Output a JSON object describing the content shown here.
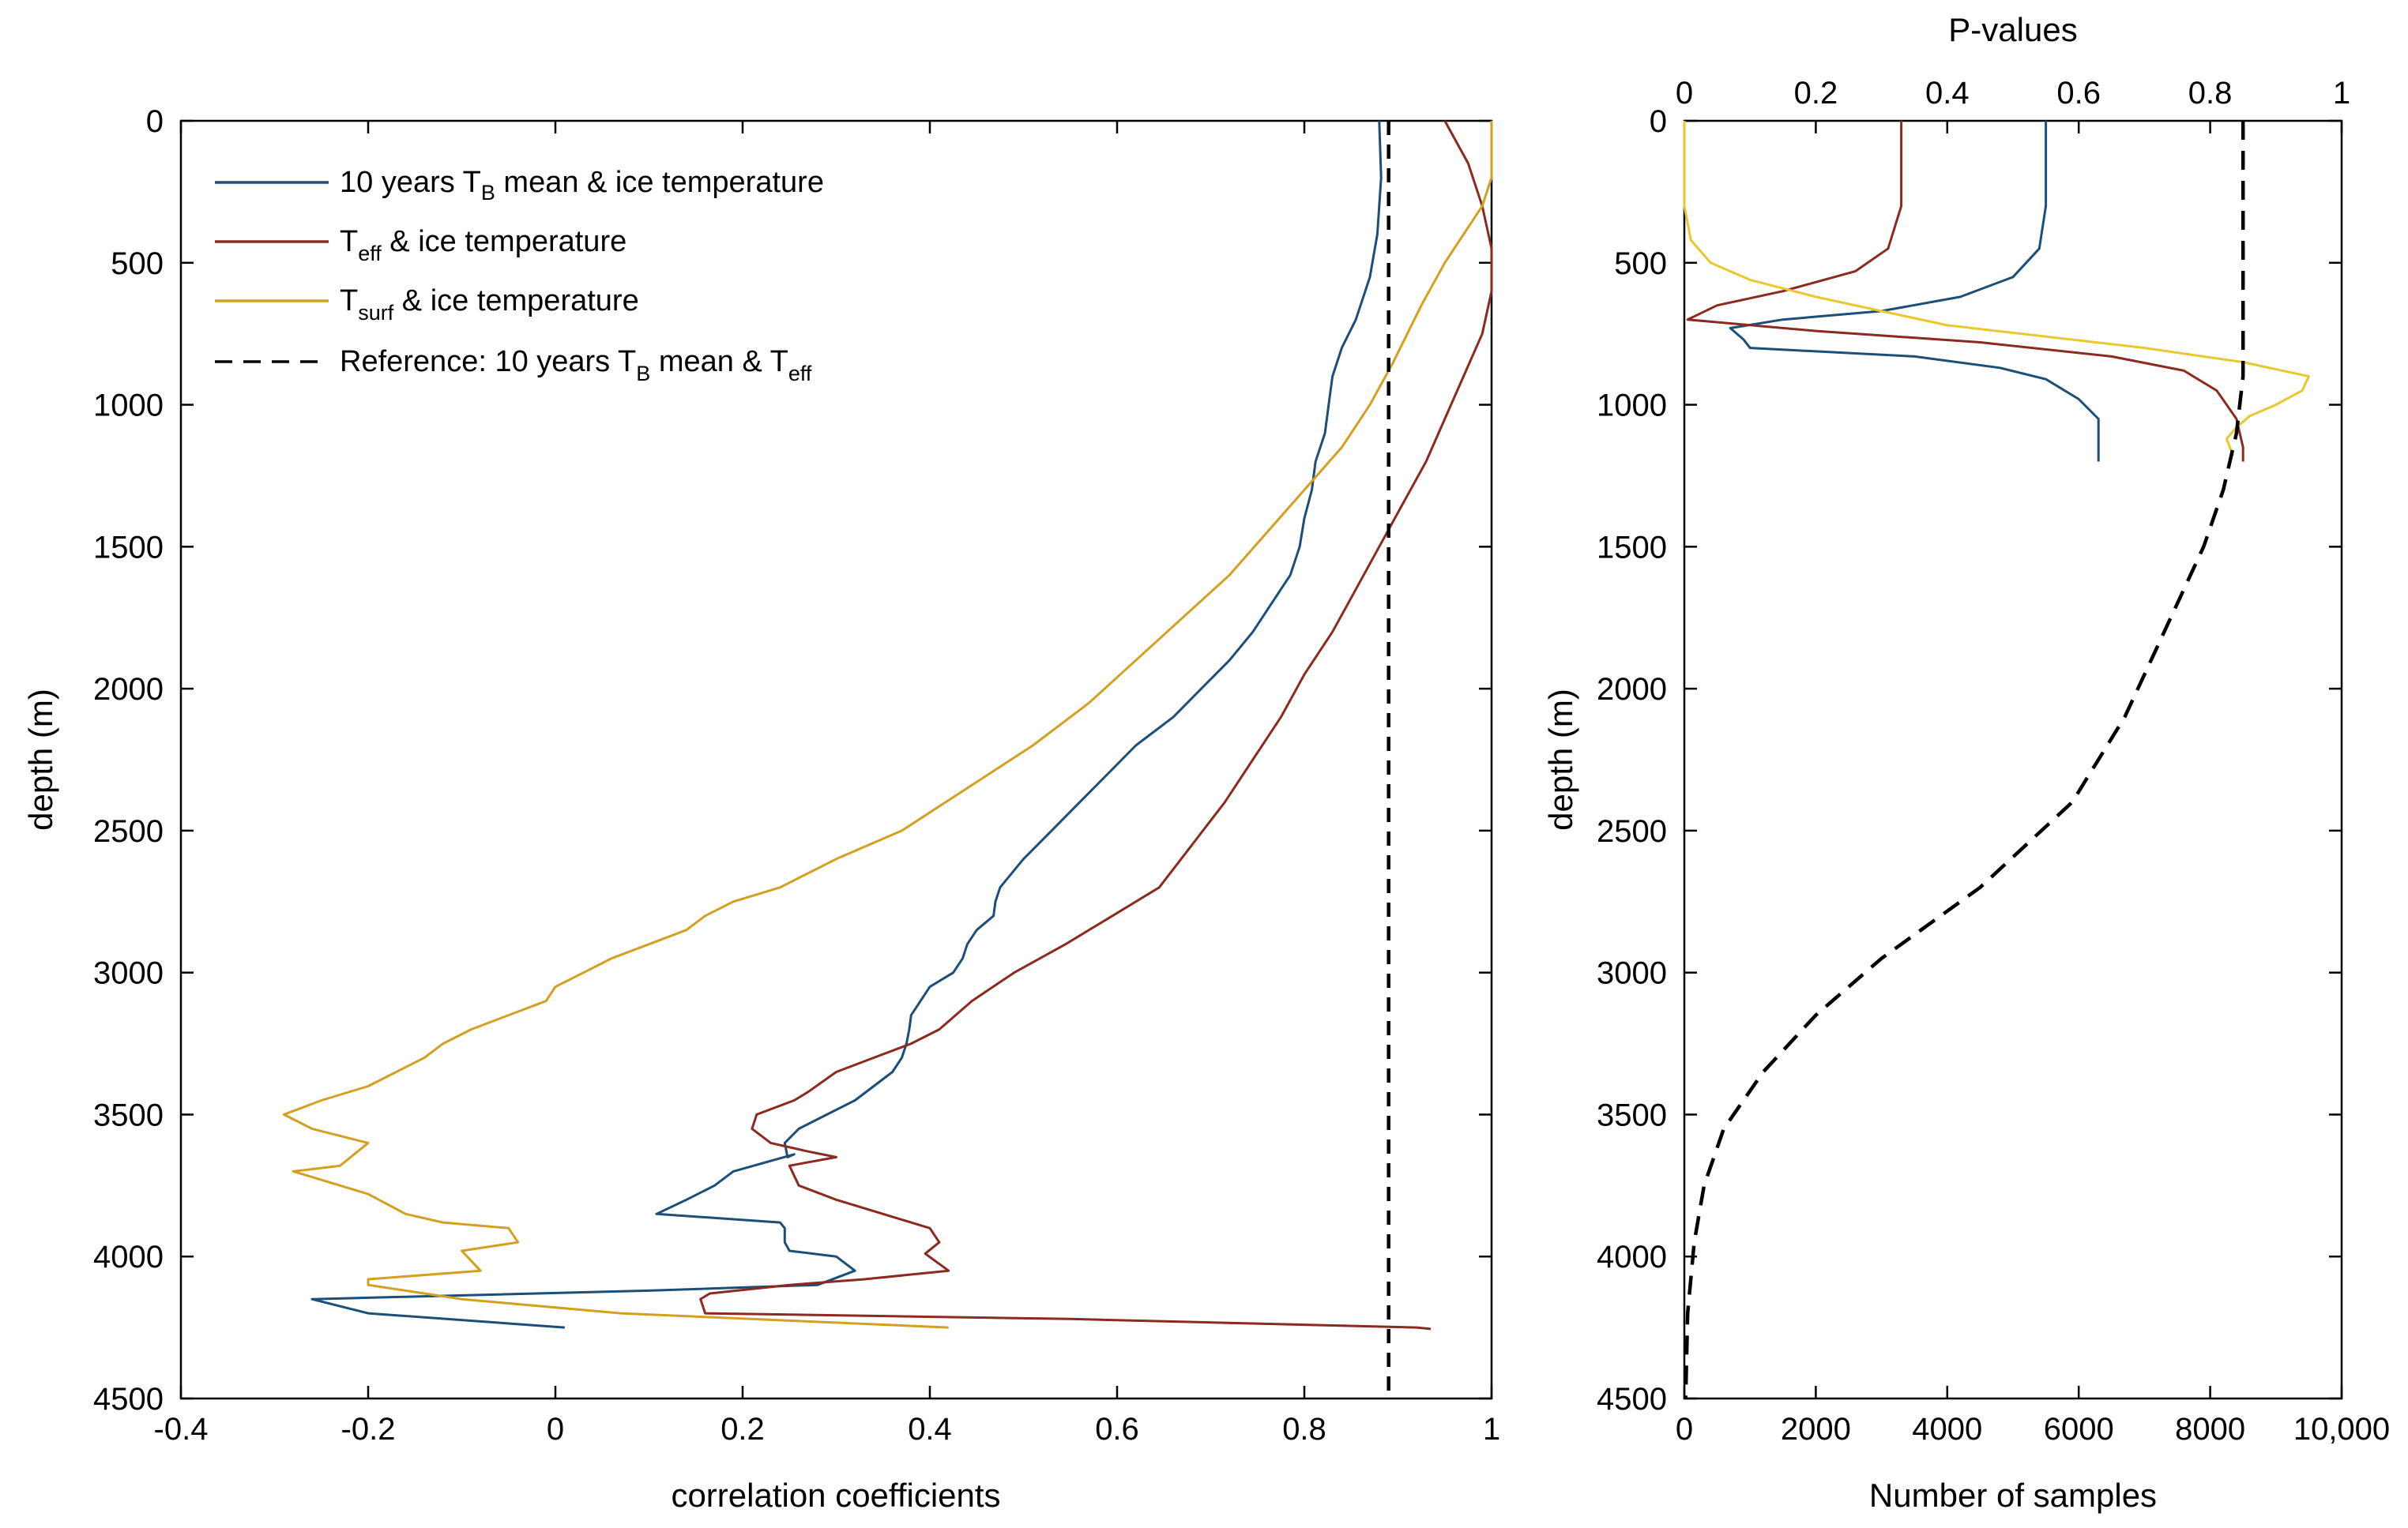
{
  "colors": {
    "blue": "#1b4f7a",
    "red": "#8b2a1e",
    "gold": "#d4a020",
    "yellow": "#e8c82e",
    "black": "#000000"
  },
  "chart_data": [
    {
      "type": "line",
      "xlabel": "correlation coefficients",
      "ylabel": "depth (m)",
      "xlim": [
        -0.4,
        1
      ],
      "ylim": [
        0,
        4500
      ],
      "yreversed": true,
      "xticks": [
        "-0.4",
        "-0.2",
        "0",
        "0.2",
        "0.4",
        "0.6",
        "0.8",
        "1"
      ],
      "yticks": [
        "0",
        "500",
        "1000",
        "1500",
        "2000",
        "2500",
        "3000",
        "3500",
        "4000",
        "4500"
      ],
      "legend_position": "top-left",
      "series": [
        {
          "name": "10 years TB mean & ice temperature",
          "label": {
            "pre": "10 years T",
            "sub1": "B",
            "mid": " mean & ice temperature"
          },
          "color": "#1b4f7a",
          "dash": "solid",
          "points": [
            [
              0.88,
              0
            ],
            [
              0.882,
              200
            ],
            [
              0.878,
              400
            ],
            [
              0.87,
              550
            ],
            [
              0.855,
              700
            ],
            [
              0.84,
              800
            ],
            [
              0.83,
              900
            ],
            [
              0.826,
              1000
            ],
            [
              0.822,
              1100
            ],
            [
              0.812,
              1200
            ],
            [
              0.808,
              1300
            ],
            [
              0.8,
              1400
            ],
            [
              0.795,
              1500
            ],
            [
              0.785,
              1600
            ],
            [
              0.765,
              1700
            ],
            [
              0.745,
              1800
            ],
            [
              0.72,
              1900
            ],
            [
              0.69,
              2000
            ],
            [
              0.66,
              2100
            ],
            [
              0.62,
              2200
            ],
            [
              0.59,
              2300
            ],
            [
              0.56,
              2400
            ],
            [
              0.53,
              2500
            ],
            [
              0.5,
              2600
            ],
            [
              0.475,
              2700
            ],
            [
              0.47,
              2750
            ],
            [
              0.468,
              2800
            ],
            [
              0.45,
              2850
            ],
            [
              0.44,
              2900
            ],
            [
              0.435,
              2950
            ],
            [
              0.425,
              3000
            ],
            [
              0.4,
              3050
            ],
            [
              0.39,
              3100
            ],
            [
              0.38,
              3150
            ],
            [
              0.378,
              3200
            ],
            [
              0.375,
              3250
            ],
            [
              0.37,
              3300
            ],
            [
              0.36,
              3350
            ],
            [
              0.34,
              3400
            ],
            [
              0.32,
              3450
            ],
            [
              0.29,
              3500
            ],
            [
              0.26,
              3550
            ],
            [
              0.245,
              3600
            ],
            [
              0.248,
              3650
            ],
            [
              0.255,
              3640
            ],
            [
              0.19,
              3700
            ],
            [
              0.17,
              3750
            ],
            [
              0.14,
              3800
            ],
            [
              0.108,
              3850
            ],
            [
              0.24,
              3880
            ],
            [
              0.245,
              3900
            ],
            [
              0.245,
              3950
            ],
            [
              0.25,
              3980
            ],
            [
              0.3,
              4000
            ],
            [
              0.32,
              4050
            ],
            [
              0.28,
              4100
            ],
            [
              0.1,
              4120
            ],
            [
              -0.26,
              4150
            ],
            [
              -0.2,
              4200
            ],
            [
              0.01,
              4250
            ]
          ]
        },
        {
          "name": "Teff & ice temperature",
          "label": {
            "pre": "T",
            "sub1": "eff",
            "mid": "  & ice temperature"
          },
          "color": "#8b2a1e",
          "dash": "solid",
          "points": [
            [
              0.95,
              0
            ],
            [
              0.975,
              150
            ],
            [
              0.99,
              300
            ],
            [
              1.0,
              450
            ],
            [
              1.0,
              600
            ],
            [
              0.99,
              750
            ],
            [
              0.97,
              900
            ],
            [
              0.95,
              1050
            ],
            [
              0.93,
              1200
            ],
            [
              0.905,
              1350
            ],
            [
              0.88,
              1500
            ],
            [
              0.855,
              1650
            ],
            [
              0.83,
              1800
            ],
            [
              0.8,
              1950
            ],
            [
              0.775,
              2100
            ],
            [
              0.745,
              2250
            ],
            [
              0.715,
              2400
            ],
            [
              0.68,
              2550
            ],
            [
              0.645,
              2700
            ],
            [
              0.595,
              2800
            ],
            [
              0.545,
              2900
            ],
            [
              0.49,
              3000
            ],
            [
              0.445,
              3100
            ],
            [
              0.41,
              3200
            ],
            [
              0.38,
              3250
            ],
            [
              0.34,
              3300
            ],
            [
              0.3,
              3350
            ],
            [
              0.27,
              3420
            ],
            [
              0.255,
              3450
            ],
            [
              0.215,
              3500
            ],
            [
              0.21,
              3550
            ],
            [
              0.23,
              3600
            ],
            [
              0.27,
              3630
            ],
            [
              0.3,
              3650
            ],
            [
              0.25,
              3680
            ],
            [
              0.26,
              3750
            ],
            [
              0.3,
              3800
            ],
            [
              0.35,
              3850
            ],
            [
              0.4,
              3900
            ],
            [
              0.41,
              3950
            ],
            [
              0.395,
              3990
            ],
            [
              0.42,
              4050
            ],
            [
              0.33,
              4080
            ],
            [
              0.25,
              4100
            ],
            [
              0.165,
              4130
            ],
            [
              0.155,
              4150
            ],
            [
              0.16,
              4200
            ],
            [
              0.55,
              4220
            ],
            [
              0.92,
              4250
            ],
            [
              0.935,
              4255
            ]
          ]
        },
        {
          "name": "Tsurf & ice temperature",
          "label": {
            "pre": "T",
            "sub1": "surf",
            "mid": " & ice temperature"
          },
          "color": "#d4a020",
          "dash": "solid",
          "points": [
            [
              1.0,
              0
            ],
            [
              1.0,
              200
            ],
            [
              0.99,
              300
            ],
            [
              0.97,
              400
            ],
            [
              0.95,
              500
            ],
            [
              0.925,
              650
            ],
            [
              0.895,
              850
            ],
            [
              0.87,
              1000
            ],
            [
              0.84,
              1150
            ],
            [
              0.8,
              1300
            ],
            [
              0.76,
              1450
            ],
            [
              0.72,
              1600
            ],
            [
              0.67,
              1750
            ],
            [
              0.62,
              1900
            ],
            [
              0.57,
              2050
            ],
            [
              0.51,
              2200
            ],
            [
              0.44,
              2350
            ],
            [
              0.37,
              2500
            ],
            [
              0.3,
              2600
            ],
            [
              0.24,
              2700
            ],
            [
              0.19,
              2750
            ],
            [
              0.16,
              2800
            ],
            [
              0.14,
              2850
            ],
            [
              0.1,
              2900
            ],
            [
              0.06,
              2950
            ],
            [
              0.03,
              3000
            ],
            [
              0.0,
              3050
            ],
            [
              -0.01,
              3100
            ],
            [
              -0.05,
              3150
            ],
            [
              -0.09,
              3200
            ],
            [
              -0.12,
              3250
            ],
            [
              -0.14,
              3300
            ],
            [
              -0.17,
              3350
            ],
            [
              -0.2,
              3400
            ],
            [
              -0.25,
              3450
            ],
            [
              -0.29,
              3500
            ],
            [
              -0.26,
              3550
            ],
            [
              -0.2,
              3600
            ],
            [
              -0.23,
              3680
            ],
            [
              -0.28,
              3700
            ],
            [
              -0.2,
              3780
            ],
            [
              -0.16,
              3850
            ],
            [
              -0.12,
              3880
            ],
            [
              -0.05,
              3900
            ],
            [
              -0.04,
              3950
            ],
            [
              -0.1,
              3980
            ],
            [
              -0.08,
              4050
            ],
            [
              -0.2,
              4080
            ],
            [
              -0.2,
              4100
            ],
            [
              -0.1,
              4150
            ],
            [
              0.07,
              4200
            ],
            [
              0.42,
              4250
            ]
          ]
        },
        {
          "name": "Reference: 10 years TB mean & Teff",
          "label": {
            "pre": "Reference: 10 years T",
            "sub1": "B",
            "mid": " mean & T",
            "sub2": "eff"
          },
          "color": "#000000",
          "dash": "dashed",
          "points": [
            [
              0.89,
              0
            ],
            [
              0.89,
              4500
            ]
          ]
        }
      ]
    },
    {
      "type": "line",
      "xlabel": "Number of samples",
      "x2label": "P-values",
      "ylabel": "depth (m)",
      "xlim": [
        0,
        10000
      ],
      "x2lim": [
        0,
        1
      ],
      "ylim": [
        0,
        4500
      ],
      "yreversed": true,
      "xticks": [
        "0",
        "2000",
        "4000",
        "6000",
        "8000",
        "10,000"
      ],
      "x2ticks": [
        "0",
        "0.2",
        "0.4",
        "0.6",
        "0.8",
        "1"
      ],
      "yticks": [
        "0",
        "500",
        "1000",
        "1500",
        "2000",
        "2500",
        "3000",
        "3500",
        "4000",
        "4500"
      ],
      "series": [
        {
          "name": "P-value: 10 years TB mean & ice temperature",
          "axis": "top",
          "color": "#1b4f7a",
          "dash": "solid",
          "points": [
            [
              0.55,
              0
            ],
            [
              0.55,
              300
            ],
            [
              0.54,
              450
            ],
            [
              0.5,
              550
            ],
            [
              0.42,
              620
            ],
            [
              0.3,
              670
            ],
            [
              0.15,
              700
            ],
            [
              0.07,
              730
            ],
            [
              0.09,
              770
            ],
            [
              0.1,
              800
            ],
            [
              0.35,
              830
            ],
            [
              0.48,
              870
            ],
            [
              0.55,
              910
            ],
            [
              0.6,
              980
            ],
            [
              0.63,
              1050
            ],
            [
              0.63,
              1200
            ]
          ]
        },
        {
          "name": "P-value: Teff & ice temperature",
          "axis": "top",
          "color": "#8b2a1e",
          "dash": "solid",
          "points": [
            [
              0.33,
              0
            ],
            [
              0.33,
              300
            ],
            [
              0.31,
              450
            ],
            [
              0.26,
              530
            ],
            [
              0.15,
              600
            ],
            [
              0.05,
              650
            ],
            [
              0.005,
              700
            ],
            [
              0.2,
              740
            ],
            [
              0.45,
              780
            ],
            [
              0.65,
              830
            ],
            [
              0.76,
              880
            ],
            [
              0.81,
              950
            ],
            [
              0.84,
              1050
            ],
            [
              0.85,
              1150
            ],
            [
              0.85,
              1200
            ]
          ]
        },
        {
          "name": "P-value: Tsurf & ice temperature",
          "axis": "top",
          "color": "#e8c82e",
          "dash": "solid",
          "points": [
            [
              0.0,
              0
            ],
            [
              0.0,
              300
            ],
            [
              0.01,
              420
            ],
            [
              0.04,
              500
            ],
            [
              0.1,
              560
            ],
            [
              0.2,
              620
            ],
            [
              0.4,
              720
            ],
            [
              0.7,
              800
            ],
            [
              0.85,
              850
            ],
            [
              0.95,
              900
            ],
            [
              0.94,
              950
            ],
            [
              0.9,
              1000
            ],
            [
              0.86,
              1040
            ],
            [
              0.84,
              1080
            ],
            [
              0.825,
              1120
            ],
            [
              0.835,
              1180
            ]
          ]
        },
        {
          "name": "Number of samples",
          "axis": "bottom",
          "color": "#000000",
          "dash": "dashed",
          "points": [
            [
              8500,
              0
            ],
            [
              8500,
              600
            ],
            [
              8500,
              900
            ],
            [
              8400,
              1100
            ],
            [
              8200,
              1300
            ],
            [
              7900,
              1500
            ],
            [
              7300,
              1800
            ],
            [
              6700,
              2100
            ],
            [
              5900,
              2400
            ],
            [
              4500,
              2700
            ],
            [
              3000,
              2950
            ],
            [
              2000,
              3150
            ],
            [
              1200,
              3350
            ],
            [
              600,
              3550
            ],
            [
              300,
              3750
            ],
            [
              150,
              3950
            ],
            [
              50,
              4200
            ],
            [
              20,
              4500
            ]
          ]
        }
      ]
    }
  ]
}
